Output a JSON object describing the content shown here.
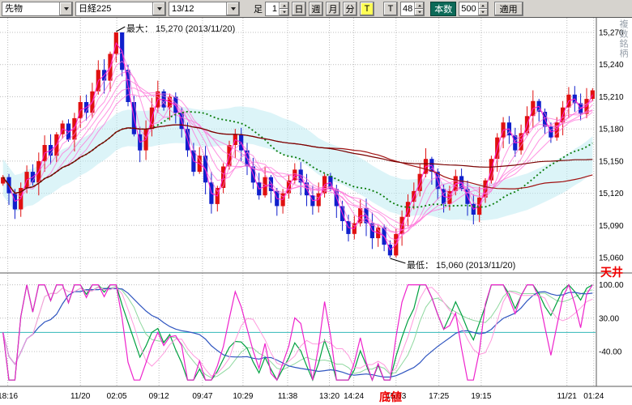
{
  "toolbar": {
    "instrument_type": "先物",
    "symbol": "日経225",
    "contract_month": "13/12",
    "bar_type_label": "足",
    "interval_value": "1",
    "period_day": "日",
    "period_week": "週",
    "period_month": "月",
    "period_minute": "分",
    "tick_toggle": "T",
    "tick_param_label": "T",
    "tick_param_value": "48",
    "bars_label": "本数",
    "bars_value": "500",
    "apply_label": "適用",
    "side_tab": "複数銘柄"
  },
  "annotations": {
    "max_label": "最大： 15,270 (2013/11/20)",
    "min_label": "最低： 15,060 (2013/11/20)",
    "ceiling": "天井",
    "bottom": "底値"
  },
  "chart_data": {
    "type": "candlestick",
    "title": "日経225 先物 13/12",
    "price_axis": {
      "labels": [
        "15,270",
        "15,240",
        "15,210",
        "15,180",
        "15,150",
        "15,120",
        "15,090",
        "15,060"
      ],
      "max": 15270,
      "min": 15060,
      "step": 30
    },
    "time_axis": {
      "labels": [
        "18:16",
        "11/20",
        "02:05",
        "09:12",
        "09:47",
        "10:29",
        "11:38",
        "13:20",
        "14:24",
        "15:03",
        "17:25",
        "19:15",
        "11/21",
        "01:24"
      ],
      "positions": [
        0.013,
        0.135,
        0.196,
        0.267,
        0.34,
        0.408,
        0.483,
        0.553,
        0.594,
        0.665,
        0.737,
        0.808,
        0.952,
        0.997
      ]
    },
    "main": {
      "closes": [
        15135,
        15120,
        15105,
        15125,
        15140,
        15130,
        15150,
        15165,
        15155,
        15175,
        15185,
        15170,
        15190,
        15205,
        15195,
        15215,
        15235,
        15225,
        15250,
        15270,
        15235,
        15205,
        15175,
        15160,
        15180,
        15200,
        15215,
        15200,
        15210,
        15195,
        15180,
        15160,
        15140,
        15155,
        15130,
        15110,
        15125,
        15145,
        15165,
        15175,
        15160,
        15145,
        15130,
        15118,
        15135,
        15122,
        15108,
        15120,
        15132,
        15142,
        15130,
        15118,
        15108,
        15120,
        15136,
        15124,
        15108,
        15094,
        15082,
        15092,
        15106,
        15092,
        15078,
        15088,
        15072,
        15062,
        15082,
        15098,
        15112,
        15122,
        15138,
        15152,
        15140,
        15124,
        15110,
        15122,
        15136,
        15124,
        15110,
        15100,
        15116,
        15132,
        15152,
        15172,
        15186,
        15174,
        15160,
        15176,
        15192,
        15206,
        15196,
        15182,
        15172,
        15186,
        15200,
        15212,
        15204,
        15194,
        15208,
        15216
      ],
      "max": {
        "value": 15270,
        "bar": 19,
        "date": "2013/11/20"
      },
      "min": {
        "value": 15060,
        "bar": 65,
        "date": "2013/11/20"
      }
    },
    "oscillator": {
      "axis_labels": [
        "100.00",
        "30.00",
        "-40.00"
      ],
      "levels": [
        100,
        30,
        -40
      ],
      "range": [
        -115,
        115
      ]
    },
    "colors": {
      "up": "#e01010",
      "down": "#1020cc",
      "ma_ribbon": "#ff6fd8",
      "ma_ribbon_core": "#ff1fd0",
      "ma_green": "#0b7d0b",
      "ma_dark_red": "#a01010",
      "ma_dark_red2": "#7a0000",
      "band": "#b9e9f1",
      "osc_fast": "#ee22cc",
      "osc_fast_smooth": "#ff9ade",
      "osc_mid": "#00a040",
      "osc_mid_smooth": "#8fd89f",
      "osc_slow": "#2f55c0",
      "level_line": "#30b8b8",
      "grid": "#bcbcbc",
      "annotation": "#ee0000"
    }
  }
}
